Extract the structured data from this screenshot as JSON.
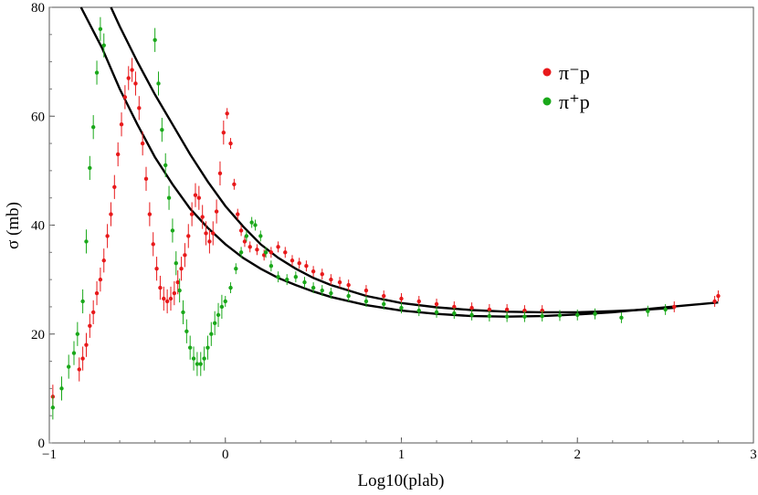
{
  "chart_data": {
    "type": "scatter",
    "xlabel": "Log10(plab)",
    "ylabel": "σ (mb)",
    "xlim": [
      -1,
      3
    ],
    "ylim": [
      0,
      80
    ],
    "x_ticks": [
      -1,
      0,
      1,
      2,
      3
    ],
    "y_ticks": [
      0,
      20,
      40,
      60,
      80
    ],
    "legend_position": "top-right",
    "series": [
      {
        "name": "π⁻p",
        "color": "#e8191b",
        "points": [
          [
            -0.98,
            8.5
          ],
          [
            -0.83,
            13.5
          ],
          [
            -0.81,
            15.5
          ],
          [
            -0.79,
            18.0
          ],
          [
            -0.77,
            21.5
          ],
          [
            -0.75,
            24.0
          ],
          [
            -0.73,
            27.5
          ],
          [
            -0.71,
            30.0
          ],
          [
            -0.69,
            33.5
          ],
          [
            -0.67,
            38.0
          ],
          [
            -0.65,
            42.0
          ],
          [
            -0.63,
            47.0
          ],
          [
            -0.61,
            53.0
          ],
          [
            -0.59,
            58.5
          ],
          [
            -0.57,
            63.5
          ],
          [
            -0.55,
            67.0
          ],
          [
            -0.53,
            68.5
          ],
          [
            -0.51,
            66.0
          ],
          [
            -0.49,
            61.5
          ],
          [
            -0.47,
            55.0
          ],
          [
            -0.45,
            48.5
          ],
          [
            -0.43,
            42.0
          ],
          [
            -0.41,
            36.5
          ],
          [
            -0.39,
            32.0
          ],
          [
            -0.37,
            28.5
          ],
          [
            -0.35,
            26.5
          ],
          [
            -0.33,
            26.0
          ],
          [
            -0.31,
            26.5
          ],
          [
            -0.29,
            27.5
          ],
          [
            -0.27,
            29.5
          ],
          [
            -0.25,
            32.0
          ],
          [
            -0.23,
            34.5
          ],
          [
            -0.21,
            38.0
          ],
          [
            -0.19,
            42.0
          ],
          [
            -0.17,
            45.5
          ],
          [
            -0.15,
            45.0
          ],
          [
            -0.13,
            41.5
          ],
          [
            -0.11,
            38.5
          ],
          [
            -0.09,
            37.0
          ],
          [
            -0.07,
            38.5
          ],
          [
            -0.05,
            42.5
          ],
          [
            -0.03,
            49.5
          ],
          [
            -0.01,
            57.0
          ],
          [
            0.01,
            60.5
          ],
          [
            0.03,
            55.0
          ],
          [
            0.05,
            47.5
          ],
          [
            0.07,
            42.0
          ],
          [
            0.09,
            39.0
          ],
          [
            0.11,
            37.0
          ],
          [
            0.14,
            36.0
          ],
          [
            0.18,
            35.5
          ],
          [
            0.22,
            34.5
          ],
          [
            0.26,
            35.0
          ],
          [
            0.3,
            36.0
          ],
          [
            0.34,
            35.0
          ],
          [
            0.38,
            33.5
          ],
          [
            0.42,
            33.0
          ],
          [
            0.46,
            32.5
          ],
          [
            0.5,
            31.5
          ],
          [
            0.55,
            31.0
          ],
          [
            0.6,
            30.0
          ],
          [
            0.65,
            29.5
          ],
          [
            0.7,
            29.0
          ],
          [
            0.8,
            28.0
          ],
          [
            0.9,
            27.0
          ],
          [
            1.0,
            26.5
          ],
          [
            1.1,
            26.0
          ],
          [
            1.2,
            25.5
          ],
          [
            1.3,
            25.0
          ],
          [
            1.4,
            24.8
          ],
          [
            1.5,
            24.5
          ],
          [
            1.6,
            24.5
          ],
          [
            1.7,
            24.3
          ],
          [
            1.8,
            24.3
          ],
          [
            2.55,
            25.0
          ],
          [
            2.78,
            26.0
          ],
          [
            2.8,
            27.0
          ]
        ]
      },
      {
        "name": "π⁺p",
        "color": "#1aa81a",
        "points": [
          [
            -0.98,
            6.5
          ],
          [
            -0.93,
            10.0
          ],
          [
            -0.89,
            14.0
          ],
          [
            -0.86,
            16.5
          ],
          [
            -0.84,
            20.0
          ],
          [
            -0.81,
            26.0
          ],
          [
            -0.79,
            37.0
          ],
          [
            -0.77,
            50.5
          ],
          [
            -0.75,
            58.0
          ],
          [
            -0.73,
            68.0
          ],
          [
            -0.71,
            76.0
          ],
          [
            -0.69,
            73.0
          ],
          [
            -0.4,
            74.0
          ],
          [
            -0.38,
            66.0
          ],
          [
            -0.36,
            57.5
          ],
          [
            -0.34,
            51.0
          ],
          [
            -0.32,
            45.0
          ],
          [
            -0.3,
            39.0
          ],
          [
            -0.28,
            33.0
          ],
          [
            -0.26,
            28.0
          ],
          [
            -0.24,
            24.0
          ],
          [
            -0.22,
            20.5
          ],
          [
            -0.2,
            17.5
          ],
          [
            -0.18,
            15.5
          ],
          [
            -0.16,
            14.5
          ],
          [
            -0.14,
            14.5
          ],
          [
            -0.12,
            15.5
          ],
          [
            -0.1,
            17.5
          ],
          [
            -0.08,
            20.0
          ],
          [
            -0.06,
            22.0
          ],
          [
            -0.04,
            23.5
          ],
          [
            -0.02,
            25.0
          ],
          [
            0.0,
            26.0
          ],
          [
            0.03,
            28.5
          ],
          [
            0.06,
            32.0
          ],
          [
            0.09,
            35.0
          ],
          [
            0.12,
            38.0
          ],
          [
            0.15,
            40.5
          ],
          [
            0.17,
            40.0
          ],
          [
            0.2,
            38.0
          ],
          [
            0.23,
            35.0
          ],
          [
            0.26,
            32.5
          ],
          [
            0.3,
            30.5
          ],
          [
            0.35,
            30.0
          ],
          [
            0.4,
            30.5
          ],
          [
            0.45,
            29.5
          ],
          [
            0.5,
            28.5
          ],
          [
            0.55,
            28.0
          ],
          [
            0.6,
            27.5
          ],
          [
            0.7,
            27.0
          ],
          [
            0.8,
            26.0
          ],
          [
            0.9,
            25.5
          ],
          [
            1.0,
            24.8
          ],
          [
            1.1,
            24.3
          ],
          [
            1.2,
            24.0
          ],
          [
            1.3,
            23.8
          ],
          [
            1.4,
            23.5
          ],
          [
            1.5,
            23.3
          ],
          [
            1.6,
            23.2
          ],
          [
            1.7,
            23.2
          ],
          [
            1.8,
            23.3
          ],
          [
            1.9,
            23.4
          ],
          [
            2.0,
            23.5
          ],
          [
            2.1,
            23.7
          ],
          [
            2.25,
            23.0
          ],
          [
            2.4,
            24.2
          ],
          [
            2.5,
            24.5
          ]
        ]
      }
    ],
    "fit_curves": [
      {
        "color": "#000000",
        "points": [
          [
            -0.82,
            80.0
          ],
          [
            -0.7,
            72.5
          ],
          [
            -0.6,
            65.0
          ],
          [
            -0.5,
            58.5
          ],
          [
            -0.4,
            52.5
          ],
          [
            -0.3,
            47.5
          ],
          [
            -0.2,
            43.0
          ],
          [
            -0.1,
            39.5
          ],
          [
            0.0,
            36.5
          ],
          [
            0.1,
            34.0
          ],
          [
            0.2,
            32.0
          ],
          [
            0.3,
            30.3
          ],
          [
            0.4,
            29.0
          ],
          [
            0.5,
            27.8
          ],
          [
            0.6,
            26.8
          ],
          [
            0.8,
            25.3
          ],
          [
            1.0,
            24.3
          ],
          [
            1.2,
            23.7
          ],
          [
            1.4,
            23.3
          ],
          [
            1.6,
            23.2
          ],
          [
            1.8,
            23.3
          ],
          [
            2.0,
            23.6
          ],
          [
            2.2,
            24.0
          ],
          [
            2.4,
            24.6
          ],
          [
            2.6,
            25.2
          ],
          [
            2.8,
            25.8
          ]
        ]
      },
      {
        "color": "#000000",
        "points": [
          [
            -0.65,
            80.0
          ],
          [
            -0.6,
            76.5
          ],
          [
            -0.5,
            70.0
          ],
          [
            -0.4,
            64.0
          ],
          [
            -0.3,
            58.5
          ],
          [
            -0.2,
            53.0
          ],
          [
            -0.1,
            48.0
          ],
          [
            0.0,
            43.5
          ],
          [
            0.1,
            39.8
          ],
          [
            0.2,
            36.5
          ],
          [
            0.3,
            34.0
          ],
          [
            0.4,
            32.0
          ],
          [
            0.5,
            30.3
          ],
          [
            0.6,
            29.0
          ],
          [
            0.8,
            27.0
          ],
          [
            1.0,
            25.7
          ],
          [
            1.2,
            24.9
          ],
          [
            1.4,
            24.4
          ],
          [
            1.6,
            24.1
          ],
          [
            1.8,
            24.0
          ],
          [
            2.0,
            24.0
          ],
          [
            2.2,
            24.2
          ],
          [
            2.4,
            24.5
          ],
          [
            2.55,
            24.8
          ]
        ]
      }
    ]
  }
}
